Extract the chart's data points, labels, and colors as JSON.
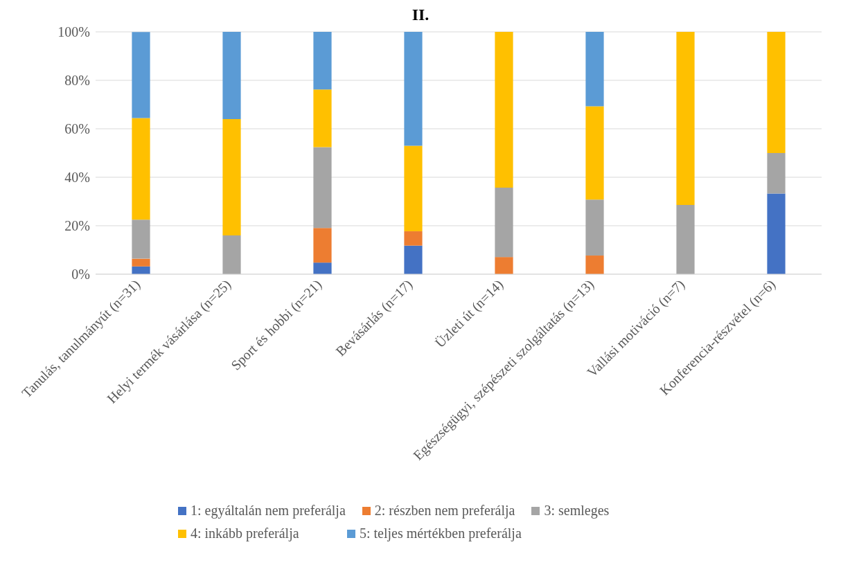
{
  "chart_data": {
    "type": "bar",
    "title": "II.",
    "stacked": true,
    "categories": [
      "Tanulás, tanulmányút (n=31)",
      "Helyi termék vásárlása (n=25)",
      "Sport és hobbi (n=21)",
      "Bevásárlás (n=17)",
      "Üzleti út (n=14)",
      "Egészségügyi, szépészeti szolgáltatás (n=13)",
      "Vallási motiváció (n=7)",
      "Konferencia-részvétel (n=6)"
    ],
    "series": [
      {
        "name": "1: egyáltalán nem preferálja",
        "color": "#4472c4",
        "values": [
          3.2,
          0,
          4.8,
          11.8,
          0,
          0,
          0,
          33.3
        ]
      },
      {
        "name": "2: részben nem preferálja",
        "color": "#ed7d31",
        "values": [
          3.2,
          0,
          14.3,
          5.9,
          7.1,
          7.7,
          0,
          0
        ]
      },
      {
        "name": "3: semleges",
        "color": "#a5a5a5",
        "values": [
          16.1,
          16,
          33.3,
          0,
          28.6,
          23.1,
          28.6,
          16.7
        ]
      },
      {
        "name": "4: inkább preferálja",
        "color": "#ffc000",
        "values": [
          41.9,
          48,
          23.8,
          35.3,
          64.3,
          38.5,
          71.4,
          50
        ]
      },
      {
        "name": "5: teljes mértékben preferálja",
        "color": "#5b9bd5",
        "values": [
          35.5,
          36,
          23.8,
          47.1,
          0,
          30.8,
          0,
          0
        ]
      }
    ],
    "ylim": [
      0,
      100
    ],
    "yticks": [
      {
        "value": 0,
        "label": "0%"
      },
      {
        "value": 20,
        "label": "20%"
      },
      {
        "value": 40,
        "label": "40%"
      },
      {
        "value": 60,
        "label": "60%"
      },
      {
        "value": 80,
        "label": "80%"
      },
      {
        "value": 100,
        "label": "100%"
      }
    ],
    "grid": "y",
    "legend": "bottom"
  }
}
